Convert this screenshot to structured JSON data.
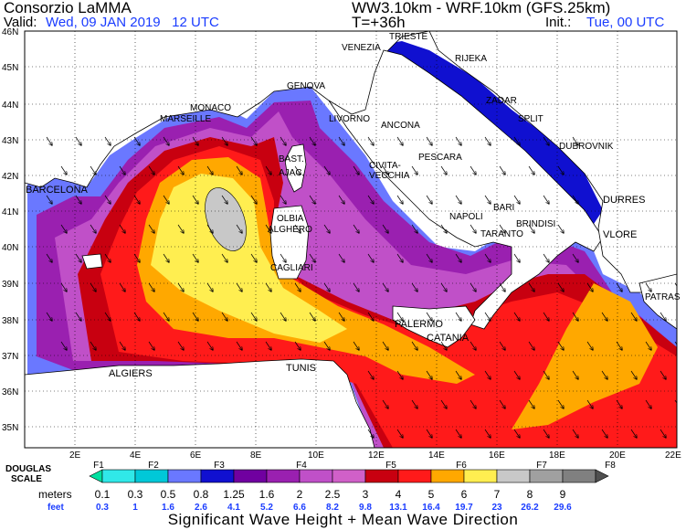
{
  "header": {
    "org": "Consorzio LaMMA",
    "model": "WW3.10km - WRF.10km (GFS.25km)",
    "valid_label": "Valid:",
    "valid_value": "Wed, 09 JAN 2019   12 UTC",
    "lead": "T=+36h",
    "init_label": "Init.:",
    "init_value": "Tue, 00 UTC"
  },
  "axes": {
    "lat_ticks": [
      "46N",
      "45N",
      "44N",
      "43N",
      "42N",
      "41N",
      "40N",
      "39N",
      "38N",
      "37N",
      "36N",
      "35N"
    ],
    "lon_ticks": [
      "2E",
      "4E",
      "6E",
      "8E",
      "10E",
      "12E",
      "14E",
      "16E",
      "18E",
      "20E",
      "22E"
    ]
  },
  "cities": [
    "TRIESTE",
    "VENEZIA",
    "RIJEKA",
    "GENOVA",
    "MONACO",
    "MARSEILLE",
    "LIVORNO",
    "ANCONA",
    "ZADAR",
    "SPLIT",
    "DUBROVNIK",
    "BAST.",
    "AJAC.",
    "PESCARA",
    "CIVITA-",
    "VECCHIA",
    "BARCELONA",
    "OLBIA",
    "ALGHERO",
    "NAPOLI",
    "BARI",
    "DURRES",
    "BRINDISI",
    "TARANTO",
    "VLORE",
    "CAGLIARI",
    "PATRAS",
    "PALERMO",
    "CATANIA",
    "TUNIS",
    "ALGIERS"
  ],
  "legend": {
    "douglas_label": "DOUGLAS",
    "scale_label": "SCALE",
    "douglas": [
      "F1",
      "F2",
      "F3",
      "F4",
      "F5",
      "F6",
      "F7",
      "F8"
    ],
    "meters_label": "meters",
    "feet_label": "feet",
    "meters": [
      "0.1",
      "0.3",
      "0.5",
      "0.8",
      "1.25",
      "1.6",
      "2",
      "2.5",
      "3",
      "4",
      "5",
      "6",
      "7",
      "8",
      "9"
    ],
    "feet": [
      "0.3",
      "1",
      "1.6",
      "2.6",
      "4.1",
      "5.2",
      "6.6",
      "8.2",
      "9.8",
      "13.1",
      "16.4",
      "19.7",
      "23",
      "26.2",
      "29.6"
    ],
    "colors": [
      "#00e0a0",
      "#30e8e8",
      "#00c8d8",
      "#6a78ff",
      "#1010d0",
      "#7000a0",
      "#9a20b0",
      "#c050c8",
      "#d060c8",
      "#c80010",
      "#ff1a1a",
      "#ffa800",
      "#ffee50",
      "#c8c8c8",
      "#a0a0a0",
      "#808080",
      "#505050"
    ]
  },
  "footer": {
    "title": "Significant Wave Height + Mean Wave Direction"
  }
}
